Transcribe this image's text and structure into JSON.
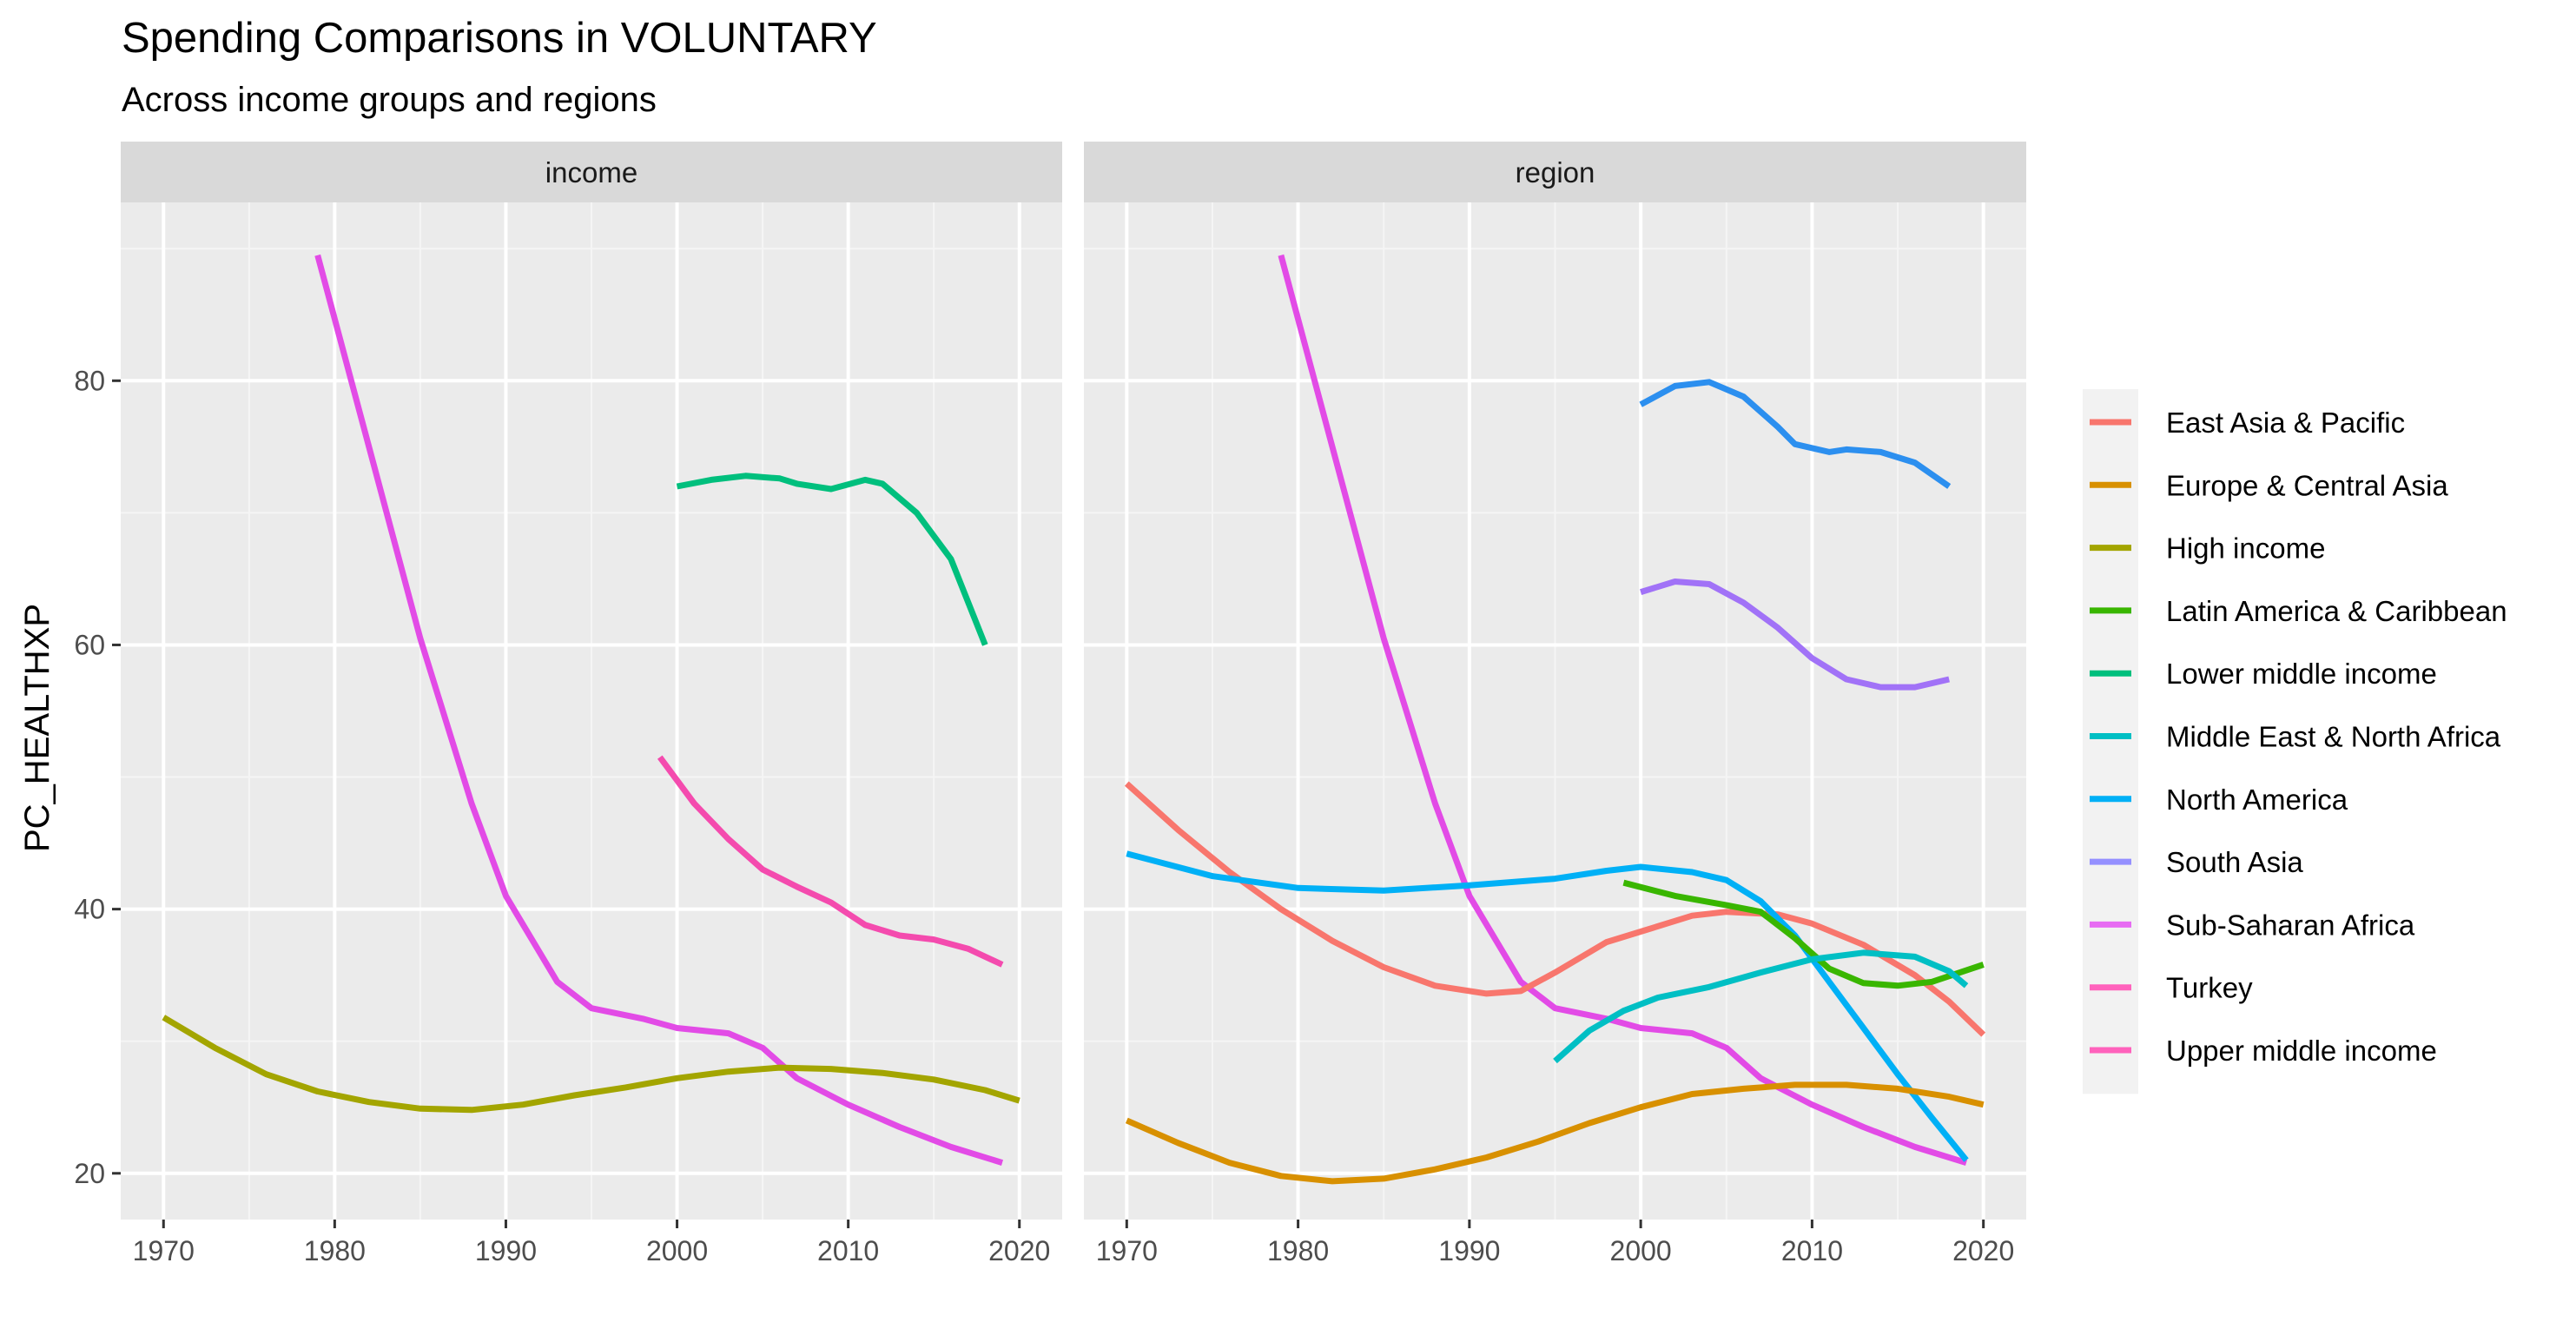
{
  "chart_data": {
    "type": "line",
    "title": "Spending Comparisons in VOLUNTARY",
    "subtitle": "Across income groups and regions",
    "ylabel": "PC_HEALTHXP",
    "xlabel": "",
    "xlim": [
      1967.5,
      2022.5
    ],
    "ylim": [
      16.5,
      93.5
    ],
    "x_ticks": [
      1970,
      1980,
      1990,
      2000,
      2010,
      2020
    ],
    "y_ticks": [
      20,
      40,
      60,
      80
    ],
    "grid": true,
    "legend_position": "right",
    "facets": [
      {
        "label": "income",
        "series": [
          {
            "name": "Turkey",
            "points": [
              [
                1979,
                89.5
              ],
              [
                1982,
                75
              ],
              [
                1985,
                60.5
              ],
              [
                1988,
                48
              ],
              [
                1990,
                41
              ],
              [
                1993,
                34.5
              ],
              [
                1995,
                32.5
              ],
              [
                1998,
                31.7
              ],
              [
                2000,
                31
              ],
              [
                2003,
                30.6
              ],
              [
                2005,
                29.5
              ],
              [
                2007,
                27.2
              ],
              [
                2010,
                25.2
              ],
              [
                2013,
                23.5
              ],
              [
                2016,
                22
              ],
              [
                2019,
                20.8
              ]
            ]
          },
          {
            "name": "Lower middle income",
            "points": [
              [
                2000,
                72
              ],
              [
                2002,
                72.5
              ],
              [
                2004,
                72.8
              ],
              [
                2006,
                72.6
              ],
              [
                2007,
                72.2
              ],
              [
                2009,
                71.8
              ],
              [
                2011,
                72.5
              ],
              [
                2012,
                72.2
              ],
              [
                2014,
                70
              ],
              [
                2016,
                66.5
              ],
              [
                2018,
                60
              ]
            ]
          },
          {
            "name": "Upper middle income",
            "points": [
              [
                1999,
                51.5
              ],
              [
                2001,
                48
              ],
              [
                2003,
                45.3
              ],
              [
                2005,
                43
              ],
              [
                2007,
                41.7
              ],
              [
                2009,
                40.5
              ],
              [
                2011,
                38.8
              ],
              [
                2013,
                38
              ],
              [
                2015,
                37.7
              ],
              [
                2017,
                37
              ],
              [
                2019,
                35.8
              ]
            ]
          },
          {
            "name": "High income",
            "points": [
              [
                1970,
                31.8
              ],
              [
                1973,
                29.5
              ],
              [
                1976,
                27.5
              ],
              [
                1979,
                26.2
              ],
              [
                1982,
                25.4
              ],
              [
                1985,
                24.9
              ],
              [
                1988,
                24.8
              ],
              [
                1991,
                25.2
              ],
              [
                1994,
                25.9
              ],
              [
                1997,
                26.5
              ],
              [
                2000,
                27.2
              ],
              [
                2003,
                27.7
              ],
              [
                2006,
                28
              ],
              [
                2009,
                27.9
              ],
              [
                2012,
                27.6
              ],
              [
                2015,
                27.1
              ],
              [
                2018,
                26.3
              ],
              [
                2020,
                25.5
              ]
            ]
          }
        ]
      },
      {
        "label": "region",
        "series": [
          {
            "name": "Turkey",
            "points": [
              [
                1979,
                89.5
              ],
              [
                1982,
                75
              ],
              [
                1985,
                60.5
              ],
              [
                1988,
                48
              ],
              [
                1990,
                41
              ],
              [
                1993,
                34.5
              ],
              [
                1995,
                32.5
              ],
              [
                1998,
                31.7
              ],
              [
                2000,
                31
              ],
              [
                2003,
                30.6
              ],
              [
                2005,
                29.5
              ],
              [
                2007,
                27.2
              ],
              [
                2010,
                25.2
              ],
              [
                2013,
                23.5
              ],
              [
                2016,
                22
              ],
              [
                2019,
                20.8
              ]
            ]
          },
          {
            "name": "South Asia",
            "points": [
              [
                2000,
                78.2
              ],
              [
                2002,
                79.6
              ],
              [
                2004,
                79.9
              ],
              [
                2006,
                78.8
              ],
              [
                2008,
                76.5
              ],
              [
                2009,
                75.2
              ],
              [
                2011,
                74.6
              ],
              [
                2012,
                74.8
              ],
              [
                2014,
                74.6
              ],
              [
                2016,
                73.8
              ],
              [
                2018,
                72
              ]
            ]
          },
          {
            "name": "Sub-Saharan Africa",
            "points": [
              [
                2000,
                64
              ],
              [
                2002,
                64.8
              ],
              [
                2004,
                64.6
              ],
              [
                2006,
                63.2
              ],
              [
                2008,
                61.3
              ],
              [
                2010,
                59
              ],
              [
                2012,
                57.4
              ],
              [
                2014,
                56.8
              ],
              [
                2016,
                56.8
              ],
              [
                2018,
                57.4
              ]
            ]
          },
          {
            "name": "East Asia & Pacific",
            "points": [
              [
                1970,
                49.5
              ],
              [
                1973,
                46
              ],
              [
                1976,
                42.8
              ],
              [
                1979,
                40
              ],
              [
                1982,
                37.6
              ],
              [
                1985,
                35.6
              ],
              [
                1988,
                34.2
              ],
              [
                1991,
                33.6
              ],
              [
                1993,
                33.8
              ],
              [
                1995,
                35.2
              ],
              [
                1998,
                37.5
              ],
              [
                2000,
                38.3
              ],
              [
                2003,
                39.5
              ],
              [
                2005,
                39.8
              ],
              [
                2008,
                39.6
              ],
              [
                2010,
                38.9
              ],
              [
                2013,
                37.3
              ],
              [
                2016,
                35
              ],
              [
                2018,
                33
              ],
              [
                2020,
                30.5
              ]
            ]
          },
          {
            "name": "North America",
            "points": [
              [
                1970,
                44.2
              ],
              [
                1975,
                42.5
              ],
              [
                1980,
                41.6
              ],
              [
                1985,
                41.4
              ],
              [
                1990,
                41.8
              ],
              [
                1995,
                42.3
              ],
              [
                1998,
                42.9
              ],
              [
                2000,
                43.2
              ],
              [
                2003,
                42.8
              ],
              [
                2005,
                42.2
              ],
              [
                2007,
                40.6
              ],
              [
                2009,
                38
              ],
              [
                2011,
                34.5
              ],
              [
                2013,
                31
              ],
              [
                2015,
                27.5
              ],
              [
                2017,
                24.2
              ],
              [
                2019,
                21
              ]
            ]
          },
          {
            "name": "Latin America & Caribbean",
            "points": [
              [
                1999,
                42
              ],
              [
                2002,
                41
              ],
              [
                2005,
                40.3
              ],
              [
                2007,
                39.8
              ],
              [
                2009,
                37.8
              ],
              [
                2011,
                35.5
              ],
              [
                2013,
                34.4
              ],
              [
                2015,
                34.2
              ],
              [
                2017,
                34.5
              ],
              [
                2020,
                35.8
              ]
            ]
          },
          {
            "name": "Middle East & North Africa",
            "points": [
              [
                1995,
                28.5
              ],
              [
                1997,
                30.8
              ],
              [
                1999,
                32.3
              ],
              [
                2001,
                33.3
              ],
              [
                2004,
                34.1
              ],
              [
                2007,
                35.2
              ],
              [
                2010,
                36.2
              ],
              [
                2013,
                36.7
              ],
              [
                2016,
                36.4
              ],
              [
                2018,
                35.3
              ],
              [
                2019,
                34.2
              ]
            ]
          },
          {
            "name": "Europe & Central Asia",
            "points": [
              [
                1970,
                24
              ],
              [
                1973,
                22.3
              ],
              [
                1976,
                20.8
              ],
              [
                1979,
                19.8
              ],
              [
                1982,
                19.4
              ],
              [
                1985,
                19.6
              ],
              [
                1988,
                20.3
              ],
              [
                1991,
                21.2
              ],
              [
                1994,
                22.4
              ],
              [
                1997,
                23.8
              ],
              [
                2000,
                25
              ],
              [
                2003,
                26
              ],
              [
                2006,
                26.4
              ],
              [
                2009,
                26.7
              ],
              [
                2012,
                26.7
              ],
              [
                2015,
                26.4
              ],
              [
                2018,
                25.8
              ],
              [
                2020,
                25.2
              ]
            ]
          }
        ]
      }
    ],
    "legend": [
      {
        "name": "East Asia & Pacific",
        "color": "#F8766D"
      },
      {
        "name": "Europe & Central Asia",
        "color": "#D89000"
      },
      {
        "name": "High income",
        "color": "#A3A500"
      },
      {
        "name": "Latin America & Caribbean",
        "color": "#39B600"
      },
      {
        "name": "Lower middle income",
        "color": "#00BF7D"
      },
      {
        "name": "Middle East & North Africa",
        "color": "#00BFC4"
      },
      {
        "name": "North America",
        "color": "#00B0F6"
      },
      {
        "name": "South Asia",
        "color": "#9590FF"
      },
      {
        "name": "Sub-Saharan Africa",
        "color": "#E76BF3"
      },
      {
        "name": "Turkey",
        "color": "#FF62BC"
      },
      {
        "name": "Upper middle income",
        "color": "#FF62BC"
      }
    ],
    "colors": {
      "East Asia & Pacific": "#F8766D",
      "Europe & Central Asia": "#D89000",
      "High income": "#A3A500",
      "Latin America & Caribbean": "#39B600",
      "Lower middle income": "#00BF7D",
      "Middle East & North Africa": "#00BFC4",
      "North America": "#00B0F6",
      "South Asia": "#2C8FEF",
      "Sub-Saharan Africa": "#A172F7",
      "Turkey": "#E24BE6",
      "Upper middle income": "#F44BAE"
    }
  }
}
